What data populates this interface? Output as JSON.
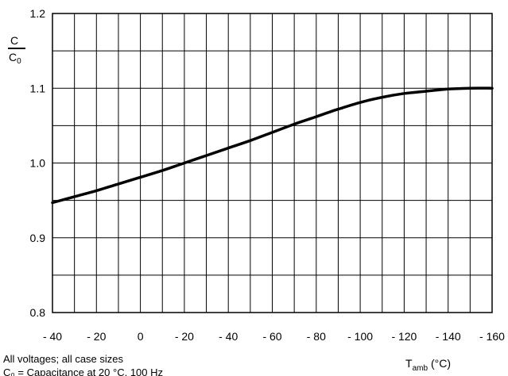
{
  "chart_data": {
    "type": "line",
    "y_axis": {
      "label_numerator": "C",
      "label_denominator": "C",
      "label_denominator_sub": "0",
      "ylim": [
        0.8,
        1.2
      ],
      "ticks": [
        "0.8",
        "0.9",
        "1.0",
        "1.1",
        "1.2"
      ],
      "minor_gridlines_per_major": 2
    },
    "x_axis": {
      "label": "T",
      "label_sub": "amb",
      "label_unit": "(°C)",
      "xlim": [
        -40,
        160
      ],
      "ticks": [
        "- 40",
        "- 20",
        "0",
        "- 20",
        "- 40",
        "- 60",
        "- 80",
        "- 100",
        "- 120",
        "- 140",
        "- 160"
      ],
      "gridline_step": 10
    },
    "grid": true,
    "series": [
      {
        "x": [
          -40,
          -30,
          -20,
          -10,
          0,
          10,
          20,
          30,
          40,
          50,
          60,
          70,
          80,
          90,
          100,
          110,
          120,
          130,
          140,
          150,
          160
        ],
        "y": [
          0.947,
          0.955,
          0.963,
          0.972,
          0.981,
          0.99,
          1.0,
          1.01,
          1.02,
          1.03,
          1.041,
          1.052,
          1.062,
          1.072,
          1.081,
          1.088,
          1.093,
          1.096,
          1.099,
          1.1,
          1.1
        ]
      }
    ],
    "notes": [
      "All voltages; all case sizes",
      "C₀ = Capacitance at 20 °C, 100 Hz"
    ],
    "line_color": "#000000"
  }
}
